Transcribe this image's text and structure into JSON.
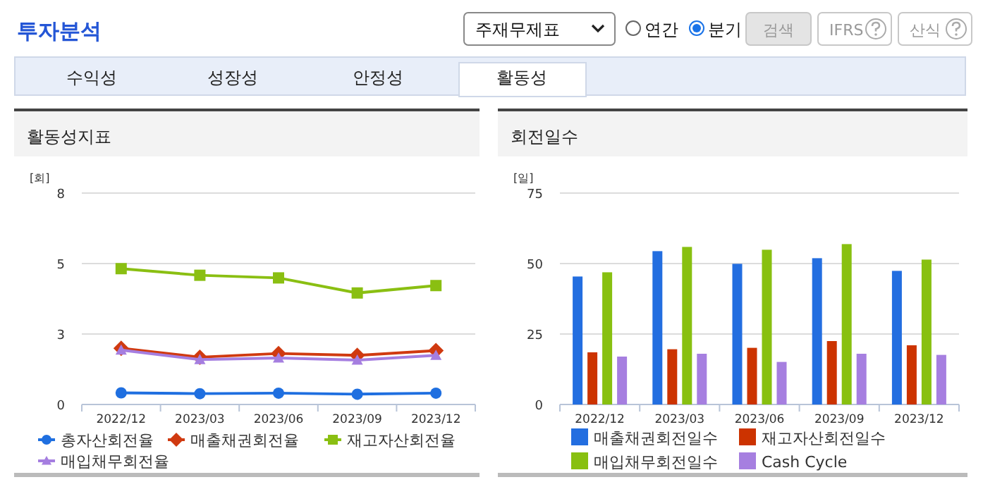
{
  "chart_data": [
    {
      "type": "line",
      "title": "활동성지표",
      "ylabel": "[회]",
      "categories": [
        "2022/12",
        "2023/03",
        "2023/06",
        "2023/09",
        "2023/12"
      ],
      "ylim": [
        0,
        8
      ],
      "yticks": [
        0,
        {
          "value": 2.667,
          "label": "3"
        },
        {
          "value": 5.333,
          "label": "5"
        },
        8
      ],
      "grid": "y",
      "legend": "bottom",
      "line_style": "solid",
      "annotations": [
        "투자분석",
        "주재무제표",
        "연간",
        "분기",
        "검색",
        "IFRS",
        "산식",
        "수익성",
        "성장성",
        "안정성",
        "활동성"
      ],
      "series": [
        {
          "name": "총자산회전율",
          "color": "#1f6fe0",
          "marker": "circle",
          "values": [
            0.44,
            0.41,
            0.43,
            0.39,
            0.43
          ]
        },
        {
          "name": "매출채권회전율",
          "color": "#d03a10",
          "marker": "diamond",
          "values": [
            2.13,
            1.79,
            1.93,
            1.86,
            2.04
          ]
        },
        {
          "name": "재고자산회전율",
          "color": "#8abf12",
          "marker": "square",
          "values": [
            5.14,
            4.89,
            4.79,
            4.22,
            4.5
          ]
        },
        {
          "name": "매입채무회전율",
          "color": "#a57ee0",
          "marker": "triangle",
          "values": [
            2.06,
            1.7,
            1.76,
            1.68,
            1.86
          ]
        }
      ]
    },
    {
      "type": "bar",
      "title": "회전일수",
      "ylabel": "[일]",
      "categories": [
        "2022/12",
        "2023/03",
        "2023/06",
        "2023/09",
        "2023/12"
      ],
      "ylim": [
        0,
        75
      ],
      "yticks": [
        0,
        25,
        50,
        75
      ],
      "grid": "y",
      "legend": "bottom",
      "series": [
        {
          "name": "매출채권회전일수",
          "color": "#236ee0",
          "values": [
            45.4,
            54.4,
            49.9,
            51.9,
            47.4
          ]
        },
        {
          "name": "재고자산회전일수",
          "color": "#cc3300",
          "values": [
            18.5,
            19.6,
            20.1,
            22.5,
            21.0
          ]
        },
        {
          "name": "매입채무회전일수",
          "color": "#88c010",
          "values": [
            46.9,
            55.9,
            54.9,
            56.9,
            51.4
          ]
        },
        {
          "name": "Cash Cycle",
          "color": "#a67fe0",
          "values": [
            17.0,
            18.0,
            15.1,
            18.0,
            17.6
          ]
        }
      ]
    }
  ]
}
